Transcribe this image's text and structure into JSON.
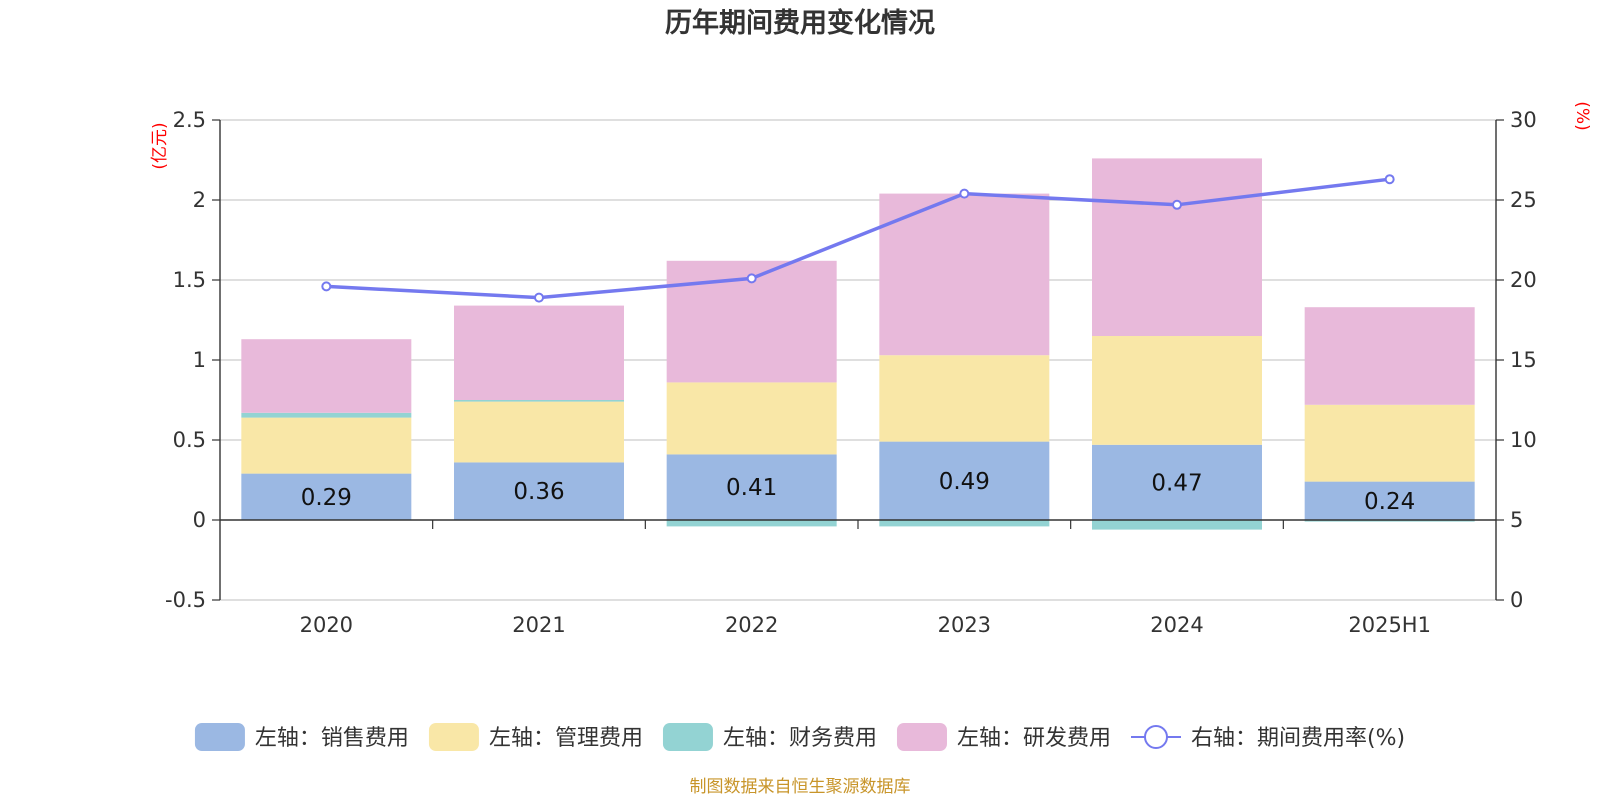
{
  "chart_data": {
    "type": "bar",
    "title": "历年期间费用变化情况",
    "categories": [
      "2020",
      "2021",
      "2022",
      "2023",
      "2024",
      "2025H1"
    ],
    "left_axis": {
      "unit": "(亿元)",
      "ylim": [
        -0.5,
        2.5
      ],
      "ticks": [
        "-0.5",
        "0",
        "0.5",
        "1",
        "1.5",
        "2",
        "2.5"
      ]
    },
    "right_axis": {
      "unit": "(%)",
      "ylim": [
        0,
        30
      ],
      "ticks": [
        "0",
        "5",
        "10",
        "15",
        "20",
        "25",
        "30"
      ]
    },
    "series": [
      {
        "name": "左轴：销售费用",
        "type": "bar",
        "stack": true,
        "color": "#9bb8e3",
        "values": [
          0.29,
          0.36,
          0.41,
          0.49,
          0.47,
          0.24
        ],
        "labels": [
          "0.29",
          "0.36",
          "0.41",
          "0.49",
          "0.47",
          "0.24"
        ]
      },
      {
        "name": "左轴：管理费用",
        "type": "bar",
        "stack": true,
        "color": "#f9e7a7",
        "values": [
          0.35,
          0.38,
          0.45,
          0.54,
          0.68,
          0.48
        ]
      },
      {
        "name": "左轴：财务费用",
        "type": "bar",
        "stack": true,
        "color": "#93d3d3",
        "values": [
          0.03,
          0.01,
          -0.04,
          -0.04,
          -0.06,
          -0.01
        ]
      },
      {
        "name": "左轴：研发费用",
        "type": "bar",
        "stack": true,
        "color": "#e8b9da",
        "values": [
          0.46,
          0.59,
          0.76,
          1.01,
          1.11,
          0.61
        ]
      },
      {
        "name": "右轴：期间费用率(%)",
        "type": "line",
        "axis": "right",
        "color": "#7479ef",
        "values": [
          19.6,
          18.9,
          20.1,
          25.4,
          24.7,
          26.3
        ]
      }
    ],
    "grid": true,
    "legend_position": "bottom"
  },
  "footer": {
    "source": "制图数据来自恒生聚源数据库"
  }
}
